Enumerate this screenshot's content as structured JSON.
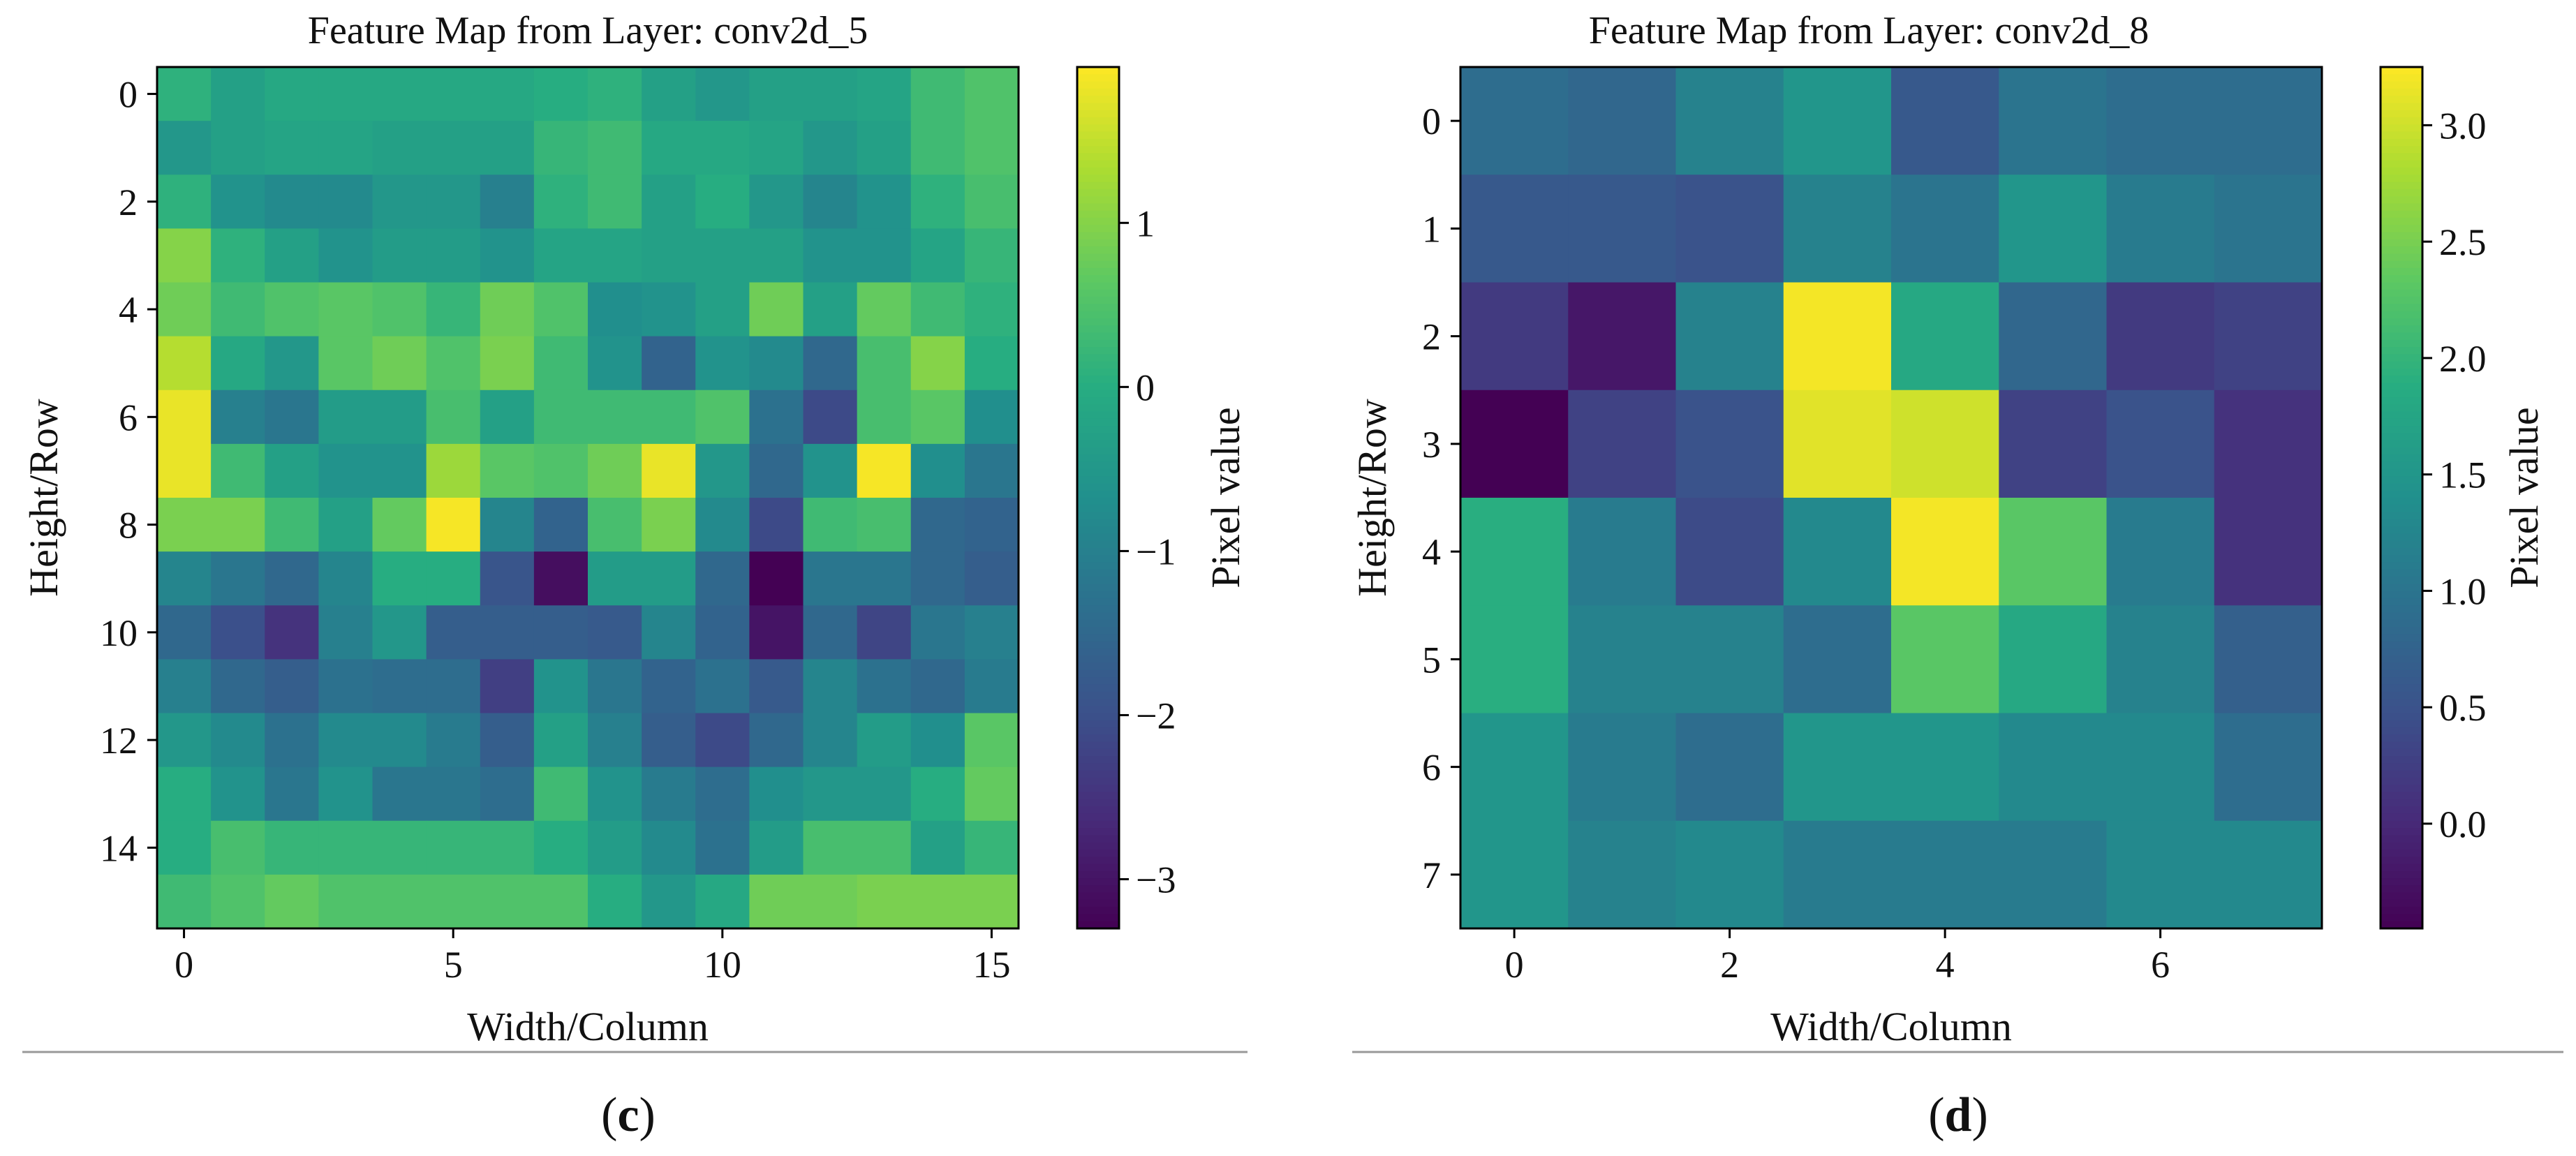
{
  "chart_data": [
    {
      "type": "heatmap",
      "title": "Feature Map from Layer: conv2d_5",
      "xlabel": "Width/Column",
      "ylabel": "Height/Row",
      "colorbar_label": "Pixel value",
      "panel_label": "c",
      "colormap": "viridis",
      "vmin": -3.3,
      "vmax": 1.95,
      "xticks": [
        0,
        5,
        10,
        15
      ],
      "yticks": [
        0,
        2,
        4,
        6,
        8,
        10,
        12,
        14
      ],
      "colorbar_ticks": [
        -3,
        -2,
        -1,
        0,
        1
      ],
      "colorbar_tick_labels": [
        "−3",
        "−2",
        "−1",
        "0",
        "1"
      ],
      "values": [
        [
          0.1,
          -0.3,
          -0.1,
          -0.1,
          -0.1,
          -0.1,
          -0.1,
          0.0,
          0.1,
          -0.3,
          -0.5,
          -0.3,
          -0.3,
          -0.2,
          0.3,
          0.5
        ],
        [
          -0.5,
          -0.3,
          -0.2,
          -0.2,
          -0.3,
          -0.3,
          -0.3,
          0.2,
          0.3,
          -0.1,
          -0.1,
          -0.2,
          -0.5,
          -0.3,
          0.3,
          0.5
        ],
        [
          0.1,
          -0.6,
          -0.8,
          -0.8,
          -0.5,
          -0.5,
          -1.0,
          0.1,
          0.3,
          -0.3,
          0.0,
          -0.5,
          -0.9,
          -0.6,
          0.1,
          0.4
        ],
        [
          1.0,
          0.1,
          -0.3,
          -0.6,
          -0.4,
          -0.4,
          -0.6,
          -0.2,
          -0.2,
          -0.3,
          -0.3,
          -0.3,
          -0.6,
          -0.6,
          -0.2,
          0.2
        ],
        [
          0.8,
          0.3,
          0.5,
          0.6,
          0.5,
          0.2,
          0.8,
          0.5,
          -0.7,
          -0.6,
          -0.3,
          0.8,
          -0.3,
          0.7,
          0.3,
          0.1
        ],
        [
          1.4,
          -0.1,
          -0.5,
          0.6,
          0.8,
          0.5,
          0.9,
          0.3,
          -0.6,
          -1.6,
          -0.6,
          -0.8,
          -1.5,
          0.4,
          1.0,
          0.0
        ],
        [
          1.8,
          -1.0,
          -1.2,
          -0.4,
          -0.4,
          0.4,
          -0.3,
          0.3,
          0.3,
          0.3,
          0.5,
          -1.3,
          -2.1,
          0.4,
          0.6,
          -0.7
        ],
        [
          1.8,
          0.3,
          -0.3,
          -0.6,
          -0.6,
          1.2,
          0.6,
          0.5,
          0.8,
          1.8,
          -0.5,
          -1.5,
          -0.6,
          1.9,
          -0.7,
          -1.2
        ],
        [
          0.9,
          0.9,
          0.3,
          -0.3,
          0.7,
          1.9,
          -0.9,
          -1.6,
          0.4,
          0.9,
          -0.8,
          -2.1,
          0.3,
          0.4,
          -1.5,
          -1.6
        ],
        [
          -0.9,
          -1.2,
          -1.5,
          -0.9,
          0.0,
          0.0,
          -1.9,
          -3.1,
          -0.4,
          -0.4,
          -1.5,
          -3.3,
          -1.2,
          -1.2,
          -1.5,
          -1.7
        ],
        [
          -1.5,
          -2.0,
          -2.5,
          -1.0,
          -0.5,
          -1.7,
          -1.7,
          -1.7,
          -1.8,
          -0.9,
          -1.6,
          -3.0,
          -1.5,
          -2.2,
          -1.2,
          -1.0
        ],
        [
          -1.0,
          -1.5,
          -1.7,
          -1.3,
          -1.4,
          -1.4,
          -2.3,
          -0.6,
          -1.2,
          -1.6,
          -1.3,
          -1.8,
          -0.9,
          -1.3,
          -1.5,
          -1.1
        ],
        [
          -0.5,
          -0.8,
          -1.3,
          -0.8,
          -0.8,
          -1.1,
          -1.7,
          -0.3,
          -1.0,
          -1.7,
          -2.1,
          -1.5,
          -0.9,
          -0.4,
          -0.7,
          0.6
        ],
        [
          0.0,
          -0.6,
          -1.2,
          -0.6,
          -1.2,
          -1.2,
          -1.4,
          0.3,
          -0.6,
          -1.1,
          -1.4,
          -0.7,
          -0.5,
          -0.5,
          0.0,
          0.7
        ],
        [
          0.0,
          0.4,
          0.2,
          0.2,
          0.2,
          0.2,
          0.2,
          0.0,
          -0.4,
          -0.8,
          -1.3,
          -0.4,
          0.4,
          0.4,
          -0.3,
          0.2
        ],
        [
          0.3,
          0.5,
          0.7,
          0.5,
          0.5,
          0.5,
          0.5,
          0.5,
          0.0,
          -0.5,
          -0.1,
          0.8,
          0.8,
          0.9,
          0.9,
          0.9
        ]
      ]
    },
    {
      "type": "heatmap",
      "title": "Feature Map from Layer: conv2d_8",
      "xlabel": "Width/Column",
      "ylabel": "Height/Row",
      "colorbar_label": "Pixel value",
      "panel_label": "d",
      "colormap": "viridis",
      "vmin": -0.45,
      "vmax": 3.25,
      "xticks": [
        0,
        2,
        4,
        6
      ],
      "yticks": [
        0,
        1,
        2,
        3,
        4,
        5,
        6,
        7
      ],
      "colorbar_ticks": [
        0.0,
        0.5,
        1.0,
        1.5,
        2.0,
        2.5,
        3.0
      ],
      "colorbar_tick_labels": [
        "0.0",
        "0.5",
        "1.0",
        "1.5",
        "2.0",
        "2.5",
        "3.0"
      ],
      "values": [
        [
          0.9,
          0.8,
          1.2,
          1.5,
          0.6,
          1.0,
          0.9,
          0.9
        ],
        [
          0.6,
          0.6,
          0.5,
          1.2,
          1.0,
          1.5,
          1.1,
          1.0
        ],
        [
          0.2,
          -0.2,
          1.2,
          3.2,
          1.8,
          0.8,
          0.2,
          0.3
        ],
        [
          -0.45,
          0.3,
          0.5,
          3.1,
          3.0,
          0.3,
          0.5,
          0.1
        ],
        [
          1.9,
          1.1,
          0.4,
          1.3,
          3.2,
          2.3,
          1.1,
          0.1
        ],
        [
          1.9,
          1.2,
          1.2,
          0.9,
          2.3,
          1.8,
          1.2,
          0.7
        ],
        [
          1.5,
          1.1,
          0.9,
          1.5,
          1.5,
          1.3,
          1.3,
          0.9
        ],
        [
          1.5,
          1.2,
          1.3,
          1.1,
          1.1,
          1.1,
          1.3,
          1.3
        ]
      ]
    }
  ]
}
